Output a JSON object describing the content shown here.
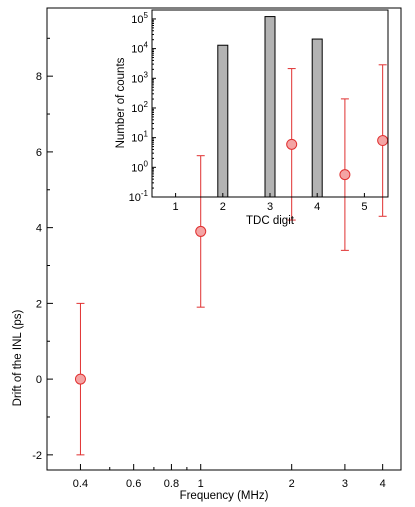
{
  "chart_data": [
    {
      "id": "main",
      "type": "scatter",
      "xscale": "log",
      "xlabel": "Frequency (MHz)",
      "ylabel": "Drift of the INL (ps)",
      "xlim": [
        0.31,
        4.6
      ],
      "ylim": [
        -2.4,
        9.8
      ],
      "xticks": [
        {
          "value": 0.4,
          "label": "0.4"
        },
        {
          "value": 0.6,
          "label": "0.6"
        },
        {
          "value": 0.8,
          "label": "0.8"
        },
        {
          "value": 1,
          "label": "1"
        },
        {
          "value": 2,
          "label": "2"
        },
        {
          "value": 3,
          "label": "3"
        },
        {
          "value": 4,
          "label": "4"
        }
      ],
      "yticks": [
        {
          "value": -2,
          "label": "-2"
        },
        {
          "value": 0,
          "label": "0"
        },
        {
          "value": 2,
          "label": "2"
        },
        {
          "value": 4,
          "label": "4"
        },
        {
          "value": 6,
          "label": "6"
        },
        {
          "value": 8,
          "label": "8"
        }
      ],
      "grid": false,
      "marker_color": "#f4a4a4",
      "error_color": "#e03030",
      "series": [
        {
          "x": [
            0.4,
            1,
            2,
            3,
            4
          ],
          "y": [
            0.0,
            3.9,
            6.2,
            5.4,
            6.3
          ],
          "yerr": [
            2.0,
            2.0,
            2.0,
            2.0,
            2.0
          ]
        }
      ]
    },
    {
      "id": "inset",
      "type": "bar",
      "yscale": "log",
      "xlabel": "TDC digit",
      "ylabel": "Number of counts",
      "xlim": [
        0.5,
        5.5
      ],
      "ylim": [
        0.1,
        200000
      ],
      "categories": [
        1,
        2,
        3,
        4,
        5
      ],
      "values": [
        0,
        13000,
        120000,
        21000,
        0
      ],
      "xticks": [
        {
          "value": 1,
          "label": "1"
        },
        {
          "value": 2,
          "label": "2"
        },
        {
          "value": 3,
          "label": "3"
        },
        {
          "value": 4,
          "label": "4"
        },
        {
          "value": 5,
          "label": "5"
        }
      ],
      "yticks": [
        {
          "exp": -1,
          "label": "10",
          "sup": "-1"
        },
        {
          "exp": 0,
          "label": "10",
          "sup": "0"
        },
        {
          "exp": 1,
          "label": "10",
          "sup": "1"
        },
        {
          "exp": 2,
          "label": "10",
          "sup": "2"
        },
        {
          "exp": 3,
          "label": "10",
          "sup": "3"
        },
        {
          "exp": 4,
          "label": "10",
          "sup": "4"
        },
        {
          "exp": 5,
          "label": "10",
          "sup": "5"
        }
      ],
      "bar_color": "#b3b3b3",
      "grid": false
    }
  ]
}
